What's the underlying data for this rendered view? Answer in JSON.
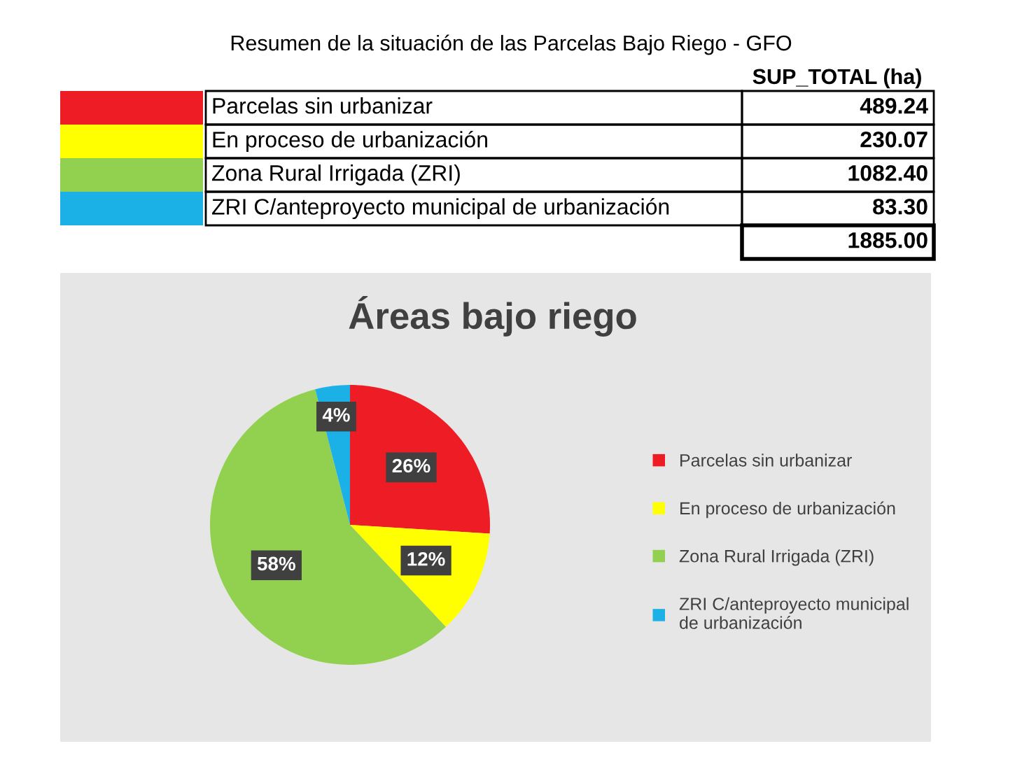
{
  "chart_data": [
    {
      "type": "other",
      "title": "Resumen de la situación de las Parcelas Bajo Riego - GFO",
      "categories": [
        "Parcelas sin urbanizar",
        "En proceso de urbanización",
        "Zona Rural Irrigada (ZRI)",
        "ZRI C/anteproyecto municipal de urbanización"
      ],
      "values": [
        489.24,
        230.07,
        1082.4,
        83.3
      ],
      "value_labels": [
        "489.24",
        "230.07",
        "1082.40",
        "83.30"
      ],
      "colors": [
        "#ee1c25",
        "#ffff00",
        "#92d050",
        "#1bb1e7"
      ],
      "totals": [
        "1885.00"
      ],
      "annotations": [
        "SUP_TOTAL (ha)"
      ]
    },
    {
      "type": "pie",
      "title": "Áreas bajo riego",
      "categories": [
        "Parcelas sin urbanizar",
        "En proceso de urbanización",
        "Zona Rural Irrigada (ZRI)",
        "ZRI C/anteproyecto municipal de urbanización"
      ],
      "values": [
        26,
        12,
        58,
        4
      ],
      "value_labels": [
        "26%",
        "12%",
        "58%",
        "4%"
      ],
      "colors": [
        "#ee1c25",
        "#ffff00",
        "#92d050",
        "#1bb1e7"
      ],
      "legend": "right"
    }
  ]
}
